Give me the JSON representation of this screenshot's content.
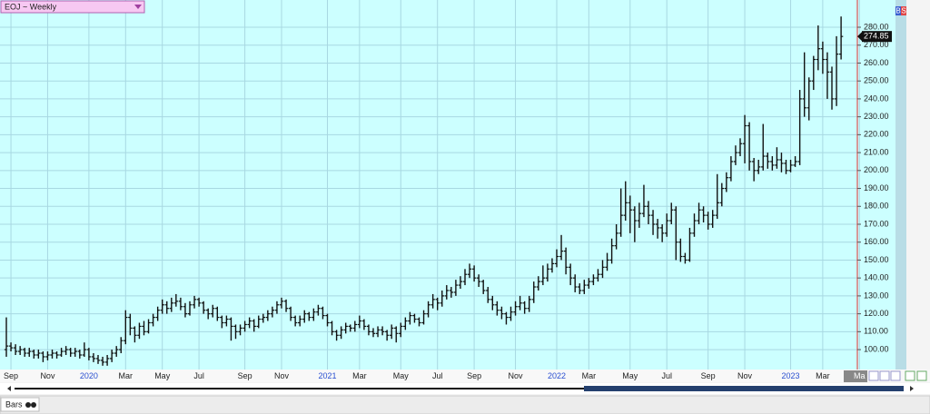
{
  "chart_data": {
    "type": "ohlc",
    "title": "EOJ ~ Weekly",
    "footer_label": "Bars",
    "indicator_letters": [
      "B",
      "S"
    ],
    "bar_color": "#111111",
    "background": "#ccffff",
    "grid_color": "#a8d8e2",
    "grid": true,
    "ylim": [
      89.9,
      294.2
    ],
    "yticks": [
      {
        "value": 100,
        "label": "100.00"
      },
      {
        "value": 110,
        "label": "110.00"
      },
      {
        "value": 120,
        "label": "120.00"
      },
      {
        "value": 130,
        "label": "130.00"
      },
      {
        "value": 140,
        "label": "140.00"
      },
      {
        "value": 150,
        "label": "150.00"
      },
      {
        "value": 160,
        "label": "160.00"
      },
      {
        "value": 170,
        "label": "170.00"
      },
      {
        "value": 180,
        "label": "180.00"
      },
      {
        "value": 190,
        "label": "190.00"
      },
      {
        "value": 200,
        "label": "200.00"
      },
      {
        "value": 210,
        "label": "210.00"
      },
      {
        "value": 220,
        "label": "220.00"
      },
      {
        "value": 230,
        "label": "230.00"
      },
      {
        "value": 240,
        "label": "240.00"
      },
      {
        "value": 250,
        "label": "250.00"
      },
      {
        "value": 260,
        "label": "260.00"
      },
      {
        "value": 270,
        "label": "270.00"
      },
      {
        "value": 280,
        "label": "280.00"
      }
    ],
    "categories": [
      null,
      "Sep",
      null,
      null,
      null,
      null,
      null,
      null,
      null,
      "Nov",
      null,
      null,
      null,
      null,
      null,
      null,
      null,
      null,
      "2020",
      null,
      null,
      null,
      null,
      null,
      null,
      null,
      "Mar",
      null,
      null,
      null,
      null,
      null,
      null,
      null,
      "May",
      null,
      null,
      null,
      null,
      null,
      null,
      null,
      "Jul",
      null,
      null,
      null,
      null,
      null,
      null,
      null,
      null,
      null,
      "Sep",
      null,
      null,
      null,
      null,
      null,
      null,
      null,
      "Nov",
      null,
      null,
      null,
      null,
      null,
      null,
      null,
      null,
      null,
      "2021",
      null,
      null,
      null,
      null,
      null,
      null,
      "Mar",
      null,
      null,
      null,
      null,
      null,
      null,
      null,
      null,
      "May",
      null,
      null,
      null,
      null,
      null,
      null,
      null,
      "Jul",
      null,
      null,
      null,
      null,
      null,
      null,
      null,
      "Sep",
      null,
      null,
      null,
      null,
      null,
      null,
      null,
      null,
      "Nov",
      null,
      null,
      null,
      null,
      null,
      null,
      null,
      null,
      "2022",
      null,
      null,
      null,
      null,
      null,
      null,
      "Mar",
      null,
      null,
      null,
      null,
      null,
      null,
      null,
      null,
      "May",
      null,
      null,
      null,
      null,
      null,
      null,
      null,
      "Jul",
      null,
      null,
      null,
      null,
      null,
      null,
      null,
      null,
      "Sep",
      null,
      null,
      null,
      null,
      null,
      null,
      null,
      "Nov",
      null,
      null,
      null,
      null,
      null,
      null,
      null,
      null,
      null,
      "2023",
      null,
      null,
      null,
      null,
      null,
      null,
      "Mar",
      null,
      null,
      null,
      null,
      null,
      null,
      null,
      "Ma"
    ],
    "ohlc": [
      [
        100,
        118,
        96,
        102
      ],
      [
        102,
        104,
        99,
        101
      ],
      [
        101,
        103,
        97,
        99
      ],
      [
        99,
        102,
        97,
        100
      ],
      [
        100,
        101,
        96,
        98
      ],
      [
        98,
        101,
        96,
        99
      ],
      [
        99,
        100,
        95,
        97
      ],
      [
        97,
        100,
        95,
        98
      ],
      [
        98,
        99,
        93,
        96
      ],
      [
        96,
        99,
        94,
        97
      ],
      [
        97,
        100,
        95,
        98
      ],
      [
        98,
        99,
        95,
        97
      ],
      [
        97,
        101,
        96,
        99
      ],
      [
        99,
        102,
        97,
        100
      ],
      [
        100,
        101,
        96,
        98
      ],
      [
        98,
        101,
        96,
        99
      ],
      [
        99,
        100,
        95,
        97
      ],
      [
        97,
        104,
        96,
        100
      ],
      [
        100,
        101,
        94,
        96
      ],
      [
        96,
        98,
        93,
        95
      ],
      [
        95,
        97,
        92,
        94
      ],
      [
        94,
        96,
        91,
        93
      ],
      [
        93,
        97,
        91,
        95
      ],
      [
        95,
        100,
        93,
        98
      ],
      [
        98,
        102,
        96,
        100
      ],
      [
        100,
        107,
        98,
        105
      ],
      [
        105,
        122,
        103,
        118
      ],
      [
        118,
        120,
        108,
        112
      ],
      [
        112,
        113,
        104,
        108
      ],
      [
        108,
        115,
        106,
        113
      ],
      [
        113,
        116,
        108,
        110
      ],
      [
        110,
        117,
        109,
        115
      ],
      [
        115,
        120,
        113,
        118
      ],
      [
        118,
        124,
        116,
        122
      ],
      [
        122,
        128,
        120,
        125
      ],
      [
        125,
        127,
        120,
        123
      ],
      [
        123,
        129,
        121,
        126
      ],
      [
        126,
        131,
        124,
        127
      ],
      [
        127,
        129,
        122,
        124
      ],
      [
        124,
        126,
        118,
        120
      ],
      [
        120,
        127,
        119,
        125
      ],
      [
        125,
        130,
        123,
        128
      ],
      [
        128,
        129,
        124,
        126
      ],
      [
        126,
        127,
        120,
        122
      ],
      [
        122,
        123,
        117,
        120
      ],
      [
        120,
        125,
        118,
        123
      ],
      [
        123,
        124,
        116,
        118
      ],
      [
        118,
        119,
        112,
        115
      ],
      [
        115,
        119,
        113,
        117
      ],
      [
        117,
        118,
        105,
        113
      ],
      [
        113,
        114,
        106,
        110
      ],
      [
        110,
        114,
        108,
        112
      ],
      [
        112,
        116,
        110,
        114
      ],
      [
        114,
        118,
        112,
        116
      ],
      [
        116,
        117,
        110,
        113
      ],
      [
        113,
        119,
        112,
        117
      ],
      [
        117,
        120,
        115,
        118
      ],
      [
        118,
        122,
        116,
        120
      ],
      [
        120,
        124,
        118,
        122
      ],
      [
        122,
        127,
        120,
        125
      ],
      [
        125,
        129,
        123,
        127
      ],
      [
        127,
        128,
        121,
        123
      ],
      [
        123,
        124,
        116,
        118
      ],
      [
        118,
        119,
        113,
        115
      ],
      [
        115,
        119,
        113,
        117
      ],
      [
        117,
        122,
        115,
        120
      ],
      [
        120,
        121,
        116,
        118
      ],
      [
        118,
        123,
        116,
        121
      ],
      [
        121,
        125,
        119,
        123
      ],
      [
        123,
        124,
        117,
        119
      ],
      [
        119,
        120,
        113,
        115
      ],
      [
        115,
        116,
        108,
        110
      ],
      [
        110,
        111,
        105,
        108
      ],
      [
        108,
        113,
        106,
        111
      ],
      [
        111,
        115,
        109,
        113
      ],
      [
        113,
        114,
        110,
        112
      ],
      [
        112,
        116,
        110,
        114
      ],
      [
        114,
        119,
        112,
        116
      ],
      [
        116,
        117,
        111,
        113
      ],
      [
        113,
        114,
        108,
        110
      ],
      [
        110,
        112,
        107,
        109
      ],
      [
        109,
        113,
        107,
        111
      ],
      [
        111,
        113,
        108,
        110
      ],
      [
        110,
        111,
        105,
        108
      ],
      [
        108,
        114,
        106,
        112
      ],
      [
        112,
        113,
        104,
        109
      ],
      [
        109,
        115,
        107,
        113
      ],
      [
        113,
        118,
        111,
        116
      ],
      [
        116,
        121,
        114,
        119
      ],
      [
        119,
        120,
        115,
        117
      ],
      [
        117,
        118,
        113,
        115
      ],
      [
        115,
        122,
        114,
        120
      ],
      [
        120,
        127,
        118,
        125
      ],
      [
        125,
        131,
        123,
        128
      ],
      [
        128,
        129,
        122,
        126
      ],
      [
        126,
        133,
        124,
        130
      ],
      [
        130,
        136,
        128,
        133
      ],
      [
        133,
        135,
        129,
        132
      ],
      [
        132,
        139,
        130,
        136
      ],
      [
        136,
        141,
        134,
        138
      ],
      [
        138,
        145,
        136,
        142
      ],
      [
        142,
        148,
        140,
        145
      ],
      [
        145,
        147,
        138,
        140
      ],
      [
        140,
        142,
        135,
        138
      ],
      [
        138,
        139,
        131,
        133
      ],
      [
        133,
        135,
        126,
        128
      ],
      [
        128,
        130,
        122,
        125
      ],
      [
        125,
        127,
        119,
        122
      ],
      [
        122,
        124,
        117,
        120
      ],
      [
        120,
        121,
        114,
        118
      ],
      [
        118,
        124,
        116,
        121
      ],
      [
        121,
        127,
        119,
        124
      ],
      [
        124,
        130,
        122,
        126
      ],
      [
        126,
        127,
        120,
        123
      ],
      [
        123,
        130,
        121,
        128
      ],
      [
        128,
        138,
        126,
        135
      ],
      [
        135,
        141,
        133,
        138
      ],
      [
        138,
        147,
        136,
        140
      ],
      [
        140,
        148,
        138,
        145
      ],
      [
        145,
        151,
        143,
        148
      ],
      [
        148,
        156,
        146,
        152
      ],
      [
        152,
        164,
        150,
        155
      ],
      [
        155,
        157,
        142,
        146
      ],
      [
        146,
        148,
        136,
        140
      ],
      [
        140,
        142,
        132,
        135
      ],
      [
        135,
        137,
        131,
        133
      ],
      [
        133,
        139,
        131,
        136
      ],
      [
        136,
        140,
        134,
        138
      ],
      [
        138,
        142,
        136,
        140
      ],
      [
        140,
        145,
        138,
        142
      ],
      [
        142,
        150,
        140,
        146
      ],
      [
        146,
        154,
        144,
        150
      ],
      [
        150,
        162,
        148,
        158
      ],
      [
        158,
        170,
        156,
        165
      ],
      [
        165,
        190,
        163,
        175
      ],
      [
        175,
        194,
        172,
        182
      ],
      [
        182,
        186,
        165,
        178
      ],
      [
        178,
        180,
        160,
        172
      ],
      [
        172,
        182,
        168,
        176
      ],
      [
        176,
        192,
        174,
        180
      ],
      [
        180,
        183,
        170,
        175
      ],
      [
        175,
        178,
        164,
        170
      ],
      [
        170,
        173,
        162,
        168
      ],
      [
        168,
        170,
        160,
        165
      ],
      [
        165,
        176,
        163,
        172
      ],
      [
        172,
        182,
        170,
        178
      ],
      [
        178,
        180,
        150,
        160
      ],
      [
        160,
        162,
        149,
        152
      ],
      [
        152,
        154,
        148,
        150
      ],
      [
        150,
        168,
        149,
        165
      ],
      [
        165,
        176,
        163,
        172
      ],
      [
        172,
        182,
        170,
        178
      ],
      [
        178,
        180,
        171,
        175
      ],
      [
        175,
        177,
        167,
        170
      ],
      [
        170,
        178,
        168,
        175
      ],
      [
        175,
        198,
        173,
        182
      ],
      [
        182,
        193,
        180,
        190
      ],
      [
        190,
        199,
        188,
        196
      ],
      [
        196,
        208,
        194,
        205
      ],
      [
        205,
        214,
        203,
        210
      ],
      [
        210,
        218,
        208,
        215
      ],
      [
        215,
        231,
        204,
        225
      ],
      [
        225,
        227,
        200,
        205
      ],
      [
        205,
        207,
        194,
        200
      ],
      [
        200,
        206,
        198,
        202
      ],
      [
        202,
        226,
        200,
        208
      ],
      [
        208,
        210,
        201,
        205
      ],
      [
        205,
        208,
        200,
        203
      ],
      [
        203,
        213,
        201,
        206
      ],
      [
        206,
        210,
        199,
        204
      ],
      [
        204,
        206,
        198,
        200
      ],
      [
        200,
        206,
        199,
        203
      ],
      [
        203,
        208,
        202,
        205
      ],
      [
        205,
        245,
        203,
        240
      ],
      [
        240,
        266,
        230,
        235
      ],
      [
        235,
        252,
        228,
        250
      ],
      [
        250,
        264,
        245,
        262
      ],
      [
        262,
        281,
        256,
        268
      ],
      [
        268,
        272,
        254,
        262
      ],
      [
        262,
        266,
        240,
        255
      ],
      [
        255,
        258,
        234,
        240
      ],
      [
        240,
        275,
        236,
        265
      ],
      [
        265,
        286,
        262,
        274.85
      ],
      null,
      null,
      null,
      null
    ]
  }
}
